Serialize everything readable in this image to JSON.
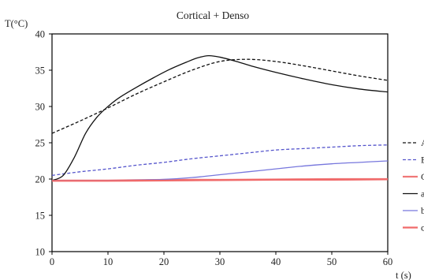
{
  "chart_data": {
    "type": "line",
    "title": "Cortical + Denso",
    "xlabel": "t (s)",
    "ylabel": "T(°C)",
    "xlim": [
      0,
      60
    ],
    "ylim": [
      10,
      40
    ],
    "x_ticks": [
      "0",
      "10",
      "20",
      "30",
      "40",
      "50",
      "60"
    ],
    "y_ticks": [
      "10",
      "15",
      "20",
      "25",
      "30",
      "35",
      "40"
    ],
    "grid": false,
    "legend_position": "right (cut off)",
    "series": [
      {
        "name": "A",
        "color": "#111111",
        "style": "dashed",
        "x": [
          0,
          5,
          10,
          15,
          20,
          25,
          30,
          35,
          40,
          45,
          50,
          55,
          60
        ],
        "y": [
          26.3,
          28.0,
          29.8,
          31.7,
          33.4,
          35.0,
          36.2,
          36.5,
          36.2,
          35.6,
          34.9,
          34.2,
          33.6
        ]
      },
      {
        "name": "B",
        "color": "#5555cc",
        "style": "dashed",
        "x": [
          0,
          5,
          10,
          15,
          20,
          25,
          30,
          35,
          40,
          45,
          50,
          55,
          60
        ],
        "y": [
          20.5,
          21.0,
          21.4,
          21.9,
          22.3,
          22.8,
          23.2,
          23.6,
          24.0,
          24.2,
          24.4,
          24.6,
          24.7
        ]
      },
      {
        "name": "C",
        "color": "#f07878",
        "style": "solid",
        "x": [
          0,
          10,
          20,
          30,
          40,
          50,
          60
        ],
        "y": [
          19.8,
          19.8,
          19.9,
          19.9,
          19.95,
          20.0,
          20.0
        ]
      },
      {
        "name": "a",
        "color": "#111111",
        "style": "solid",
        "x": [
          0,
          2,
          4,
          6,
          8,
          10,
          12,
          15,
          18,
          21,
          24,
          26,
          28,
          30,
          33,
          36,
          40,
          45,
          50,
          55,
          60
        ],
        "y": [
          19.8,
          20.5,
          23.0,
          26.3,
          28.5,
          30.0,
          31.2,
          32.6,
          33.9,
          35.1,
          36.1,
          36.7,
          37.0,
          36.8,
          36.2,
          35.5,
          34.7,
          33.8,
          33.0,
          32.4,
          32.0
        ]
      },
      {
        "name": "b",
        "color": "#7777dd",
        "style": "solid",
        "x": [
          0,
          5,
          10,
          15,
          20,
          25,
          30,
          35,
          40,
          45,
          50,
          55,
          60
        ],
        "y": [
          19.8,
          19.8,
          19.8,
          19.85,
          19.95,
          20.2,
          20.6,
          21.0,
          21.4,
          21.8,
          22.1,
          22.3,
          22.5
        ]
      },
      {
        "name": "c",
        "color": "#f06a6a",
        "style": "solid",
        "x": [
          0,
          10,
          20,
          30,
          40,
          50,
          60
        ],
        "y": [
          19.75,
          19.75,
          19.8,
          19.85,
          19.9,
          19.9,
          19.95
        ]
      }
    ]
  }
}
